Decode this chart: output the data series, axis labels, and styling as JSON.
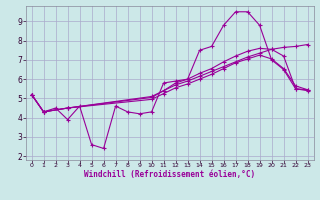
{
  "xlabel": "Windchill (Refroidissement éolien,°C)",
  "bg_color": "#cce8e8",
  "grid_color": "#aaaacc",
  "line_color": "#990099",
  "xlim": [
    -0.5,
    23.5
  ],
  "ylim": [
    1.8,
    9.8
  ],
  "xticks": [
    0,
    1,
    2,
    3,
    4,
    5,
    6,
    7,
    8,
    9,
    10,
    11,
    12,
    13,
    14,
    15,
    16,
    17,
    18,
    19,
    20,
    21,
    22,
    23
  ],
  "yticks": [
    2,
    3,
    4,
    5,
    6,
    7,
    8,
    9
  ],
  "line1_x": [
    0,
    1,
    2,
    3,
    4,
    5,
    6,
    7,
    8,
    9,
    10,
    11,
    12,
    13,
    14,
    15,
    16,
    17,
    18,
    19,
    20,
    21,
    22,
    23
  ],
  "line1_y": [
    5.2,
    4.3,
    4.5,
    3.9,
    4.6,
    2.6,
    2.4,
    4.6,
    4.3,
    4.2,
    4.3,
    5.8,
    5.9,
    6.0,
    7.5,
    7.7,
    8.8,
    9.5,
    9.5,
    8.8,
    7.0,
    6.5,
    5.5,
    5.4
  ],
  "line2_x": [
    0,
    1,
    3,
    10,
    11,
    12,
    13,
    14,
    15,
    16,
    17,
    18,
    19,
    20,
    21,
    22,
    23
  ],
  "line2_y": [
    5.2,
    4.3,
    4.5,
    5.1,
    5.4,
    5.7,
    5.9,
    6.15,
    6.4,
    6.65,
    6.9,
    7.15,
    7.35,
    7.55,
    7.65,
    7.7,
    7.8
  ],
  "line3_x": [
    0,
    1,
    3,
    10,
    11,
    12,
    13,
    14,
    15,
    16,
    17,
    18,
    19,
    20,
    21,
    22,
    23
  ],
  "line3_y": [
    5.2,
    4.3,
    4.5,
    4.95,
    5.25,
    5.55,
    5.75,
    6.0,
    6.25,
    6.55,
    6.85,
    7.05,
    7.25,
    7.05,
    6.55,
    5.65,
    5.45
  ],
  "line4_x": [
    0,
    1,
    3,
    10,
    11,
    12,
    13,
    14,
    15,
    16,
    17,
    18,
    19,
    20,
    21,
    22,
    23
  ],
  "line4_y": [
    5.2,
    4.3,
    4.5,
    5.05,
    5.4,
    5.8,
    6.0,
    6.3,
    6.55,
    6.9,
    7.2,
    7.45,
    7.6,
    7.55,
    7.2,
    5.5,
    5.45
  ]
}
